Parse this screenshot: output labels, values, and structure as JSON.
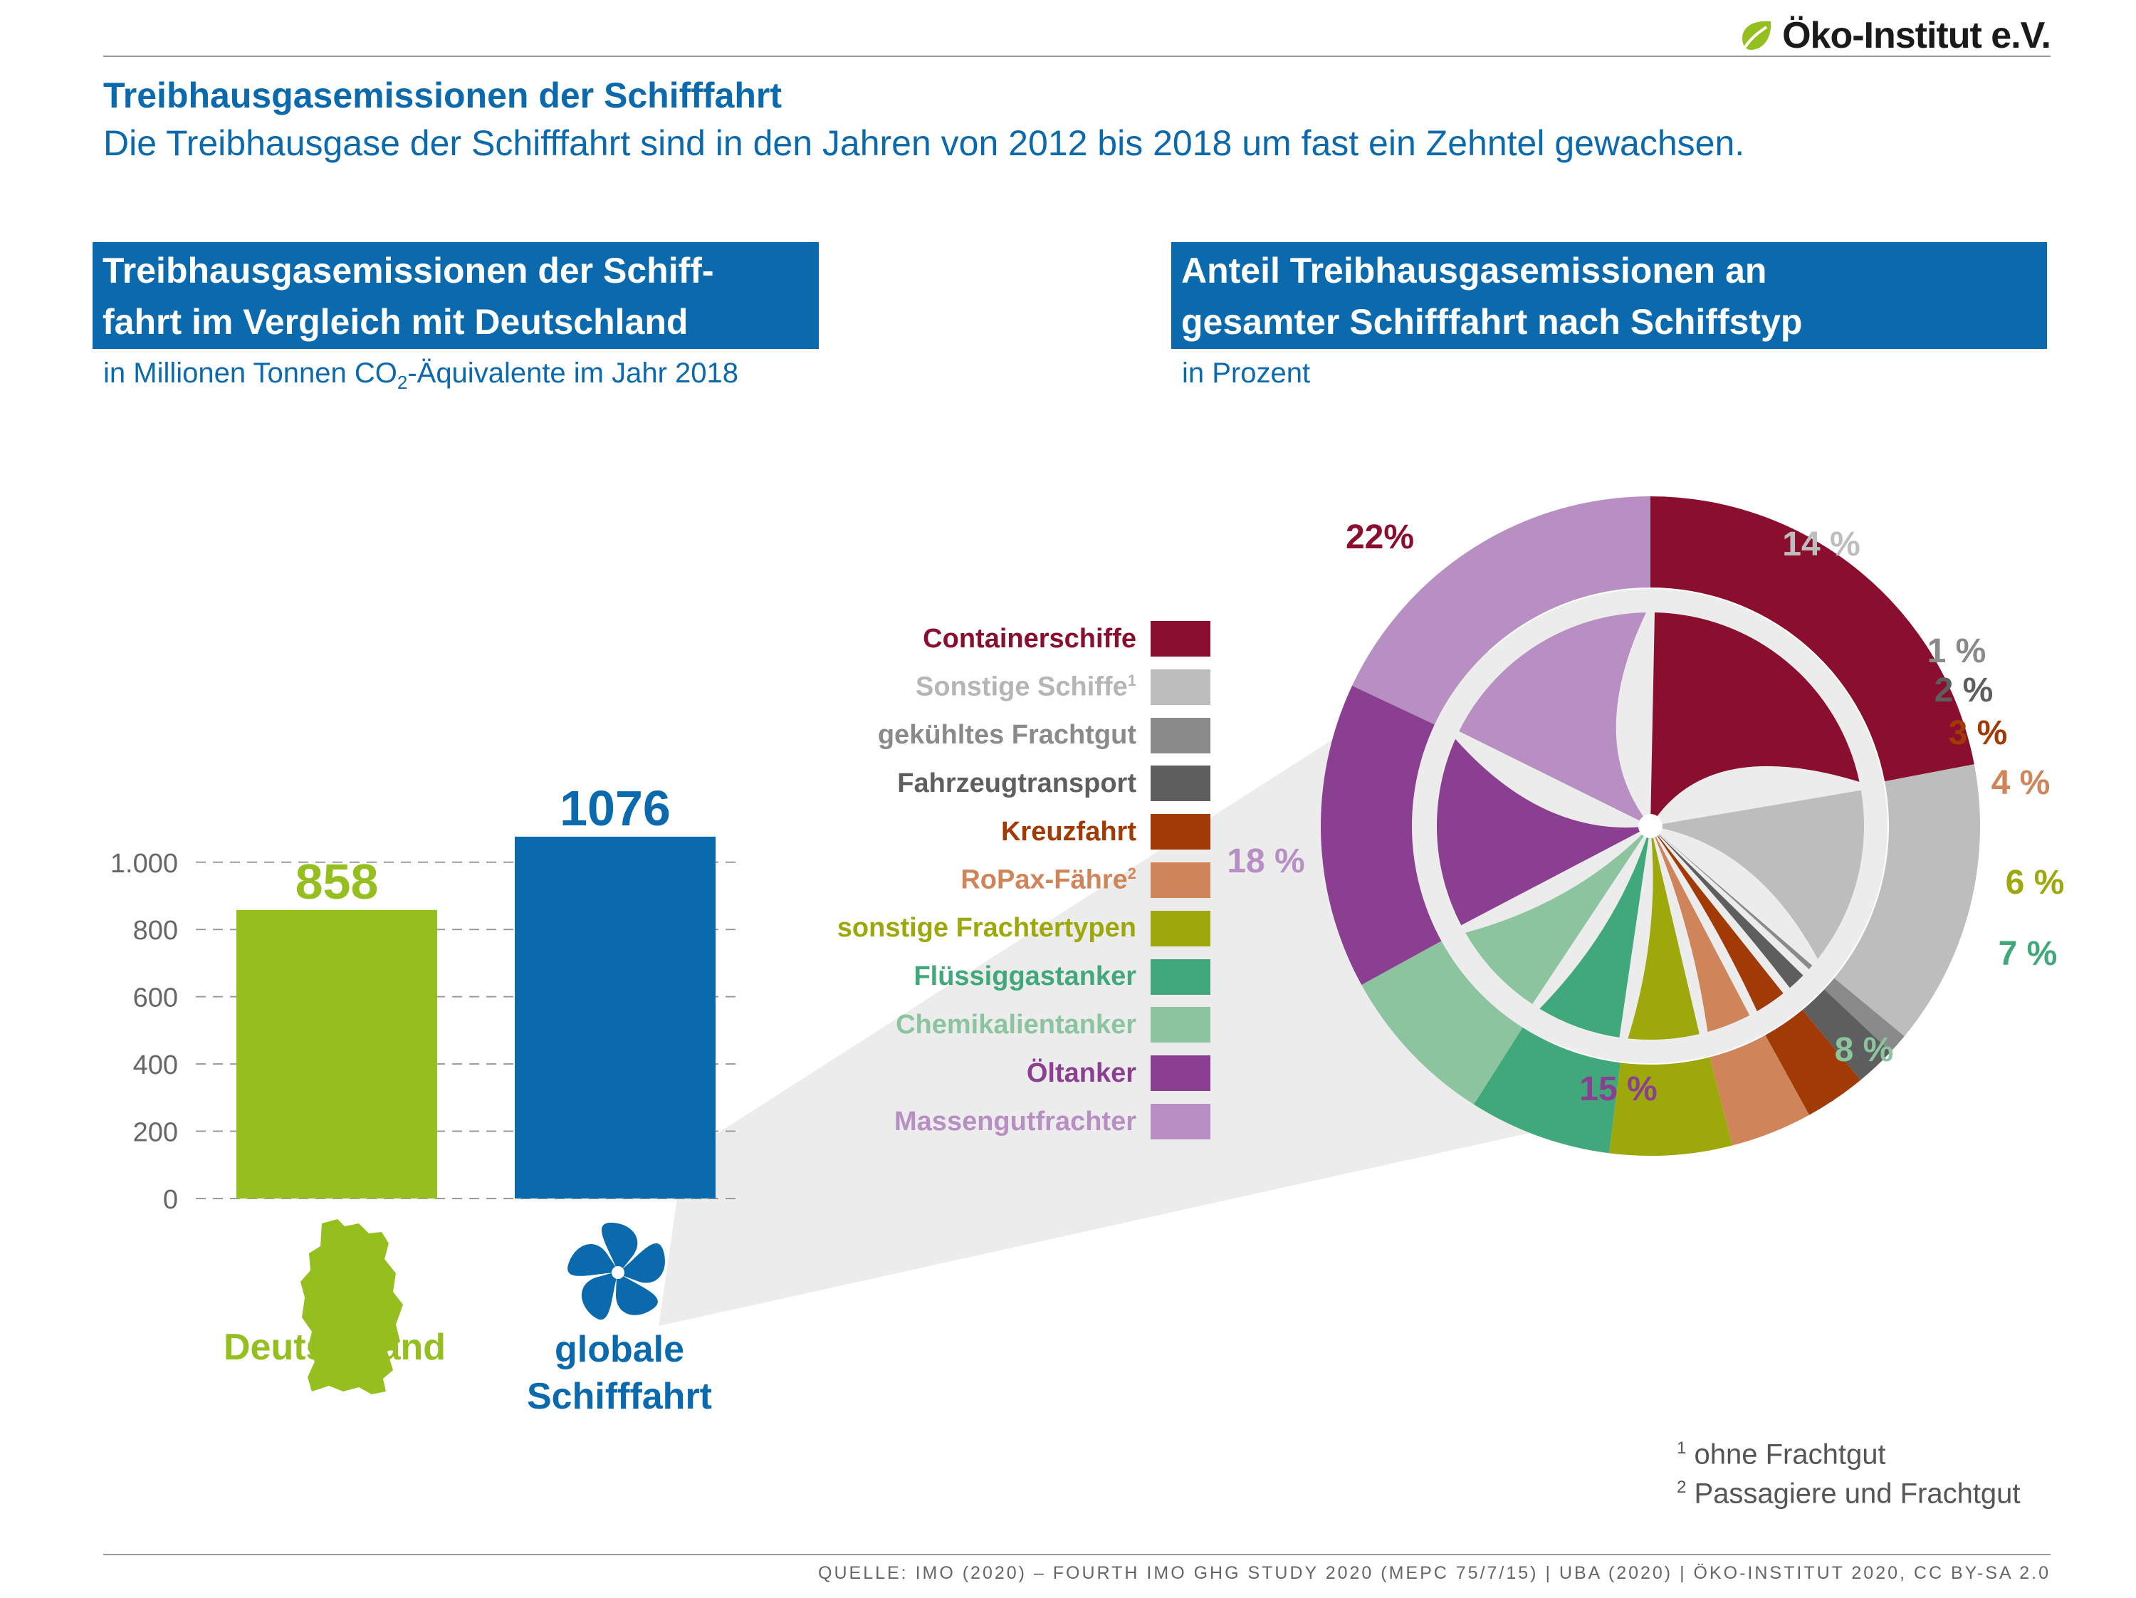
{
  "header": {
    "logo_text": "Öko-Institut e.V."
  },
  "title": "Treibhausgasemissionen der Schifffahrt",
  "subtitle": "Die Treibhausgase der Schifffahrt sind in den Jahren von 2012 bis 2018 um fast ein Zehntel gewachsen.",
  "left_panel": {
    "heading_line1": "Treibhausgasemissionen der Schiff-",
    "heading_line2": "fahrt im Vergleich mit Deutschland",
    "unit_pre": "in Millionen Tonnen CO",
    "unit_sub": "2",
    "unit_post": "-Äquivalente im Jahr 2018",
    "germany_label": "Deutschland",
    "shipping_label_line1": "globale",
    "shipping_label_line2": "Schifffahrt"
  },
  "right_panel": {
    "heading_line1": "Anteil Treibhausgasemissionen an",
    "heading_line2": "gesamter Schifffahrt nach Schiffstyp",
    "unit": "in Prozent"
  },
  "footnotes": {
    "n1_mark": "1",
    "n1_text": "ohne Frachtgut",
    "n2_mark": "2",
    "n2_text": "Passagiere und Frachtgut"
  },
  "source": "QUELLE: IMO (2020) – FOURTH IMO GHG STUDY 2020 (MEPC 75/7/15) | UBA (2020) | ÖKO-INSTITUT 2020, CC BY-SA 2.0",
  "colors": {
    "blue": "#0a6aad",
    "green": "#95bf1f"
  },
  "chart_data": [
    {
      "type": "bar",
      "categories": [
        "Deutschland",
        "globale Schifffahrt"
      ],
      "values": [
        858,
        1076
      ],
      "value_labels": [
        "858",
        "1076"
      ],
      "colors": [
        "#95bf1f",
        "#0a6aad"
      ],
      "ylim": [
        0,
        1100
      ],
      "yticks": [
        0,
        200,
        400,
        600,
        800,
        1000
      ],
      "ytick_labels": [
        "0",
        "200",
        "400",
        "600",
        "800",
        "1.000"
      ],
      "grid": true
    },
    {
      "type": "pie",
      "legend_position": "left",
      "slices": [
        {
          "label": "Containerschiffe",
          "value": 22,
          "value_label": "22%",
          "color": "#8a0f2e",
          "sup": ""
        },
        {
          "label": "Sonstige Schiffe",
          "value": 14,
          "value_label": "14 %",
          "color": "#bdbdbd",
          "sup": "1"
        },
        {
          "label": "gekühltes Frachtgut",
          "value": 1,
          "value_label": "1 %",
          "color": "#8a8a8a",
          "sup": ""
        },
        {
          "label": "Fahrzeugtransport",
          "value": 2,
          "value_label": "2 %",
          "color": "#5e5e5e",
          "sup": ""
        },
        {
          "label": "Kreuzfahrt",
          "value": 3,
          "value_label": "3 %",
          "color": "#a23a06",
          "sup": ""
        },
        {
          "label": "RoPax-Fähre",
          "value": 4,
          "value_label": "4 %",
          "color": "#cf8459",
          "sup": "2"
        },
        {
          "label": "sonstige Frachtertypen",
          "value": 6,
          "value_label": "6 %",
          "color": "#9da80a",
          "sup": ""
        },
        {
          "label": "Flüssiggastanker",
          "value": 7,
          "value_label": "7 %",
          "color": "#41a87b",
          "sup": ""
        },
        {
          "label": "Chemikalientanker",
          "value": 8,
          "value_label": "8 %",
          "color": "#8cc4a0",
          "sup": ""
        },
        {
          "label": "Öltanker",
          "value": 15,
          "value_label": "15 %",
          "color": "#8b3f91",
          "sup": ""
        },
        {
          "label": "Massengutfrachter",
          "value": 18,
          "value_label": "18 %",
          "color": "#b88fc2",
          "sup": ""
        }
      ]
    }
  ]
}
